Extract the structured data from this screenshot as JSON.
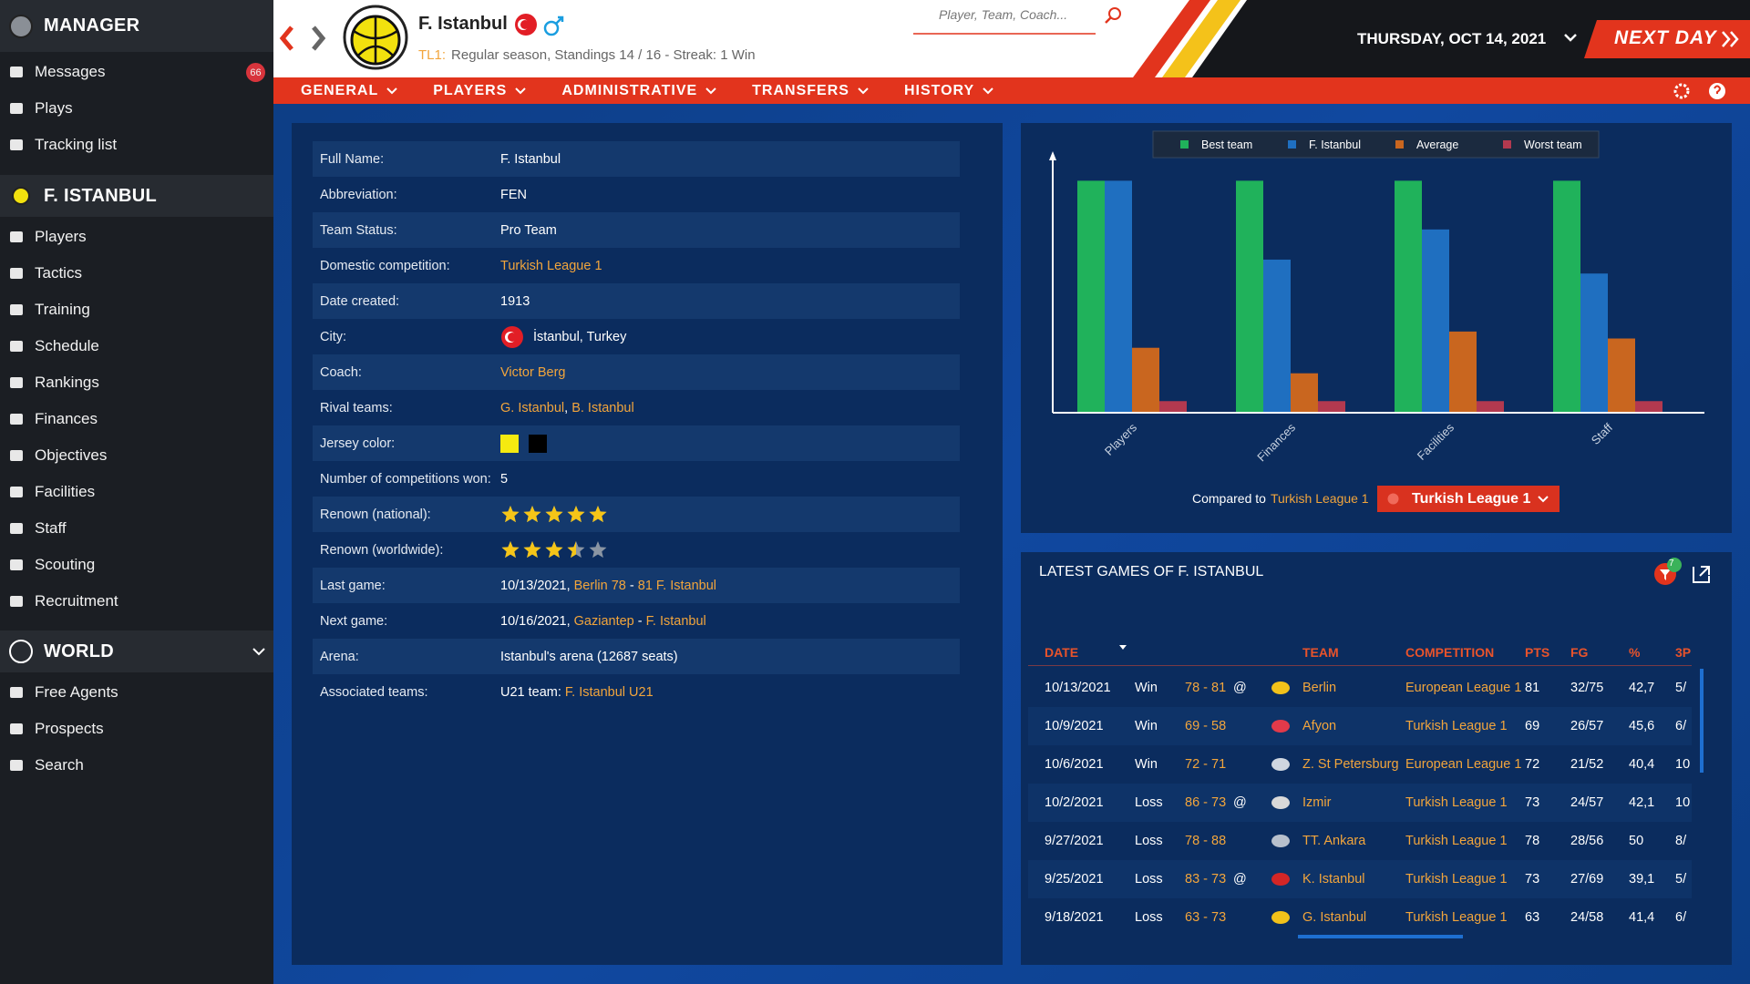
{
  "sidebar": {
    "sections": [
      {
        "title": "MANAGER",
        "items": [
          {
            "label": "Messages",
            "badge": 66
          },
          {
            "label": "Plays"
          },
          {
            "label": "Tracking list"
          }
        ]
      },
      {
        "title": "F. ISTANBUL",
        "items": [
          {
            "label": "Players"
          },
          {
            "label": "Tactics"
          },
          {
            "label": "Training"
          },
          {
            "label": "Schedule"
          },
          {
            "label": "Rankings"
          },
          {
            "label": "Finances"
          },
          {
            "label": "Objectives"
          },
          {
            "label": "Facilities"
          },
          {
            "label": "Staff"
          },
          {
            "label": "Scouting"
          },
          {
            "label": "Recruitment"
          }
        ]
      },
      {
        "title": "WORLD",
        "items": [
          {
            "label": "Free Agents"
          },
          {
            "label": "Prospects"
          },
          {
            "label": "Search"
          }
        ]
      }
    ]
  },
  "header": {
    "team_name": "F. Istanbul",
    "league": "TL1:",
    "status": "Regular season, Standings 14 / 16 - Streak: 1 Win",
    "search_placeholder": "Player, Team, Coach...",
    "date": "THURSDAY, OCT 14, 2021",
    "next_day": "NEXT DAY"
  },
  "nav": {
    "tabs": [
      "GENERAL",
      "PLAYERS",
      "ADMINISTRATIVE",
      "TRANSFERS",
      "HISTORY"
    ]
  },
  "team_info": {
    "rows": [
      {
        "label": "Full Name:",
        "value": [
          {
            "text": "F. Istanbul",
            "link": false
          }
        ]
      },
      {
        "label": "Abbreviation:",
        "value": [
          {
            "text": "FEN",
            "link": false
          }
        ]
      },
      {
        "label": "Team Status:",
        "value": [
          {
            "text": "Pro Team",
            "link": false
          }
        ]
      },
      {
        "label": "Domestic competition:",
        "value": [
          {
            "text": "Turkish League 1",
            "link": true
          }
        ]
      },
      {
        "label": "Date created:",
        "value": [
          {
            "text": "1913",
            "link": false
          }
        ]
      },
      {
        "label": "City:",
        "value": [
          {
            "text": "İstanbul, Turkey",
            "link": false
          }
        ]
      },
      {
        "label": "Coach:",
        "value": [
          {
            "text": "Victor Berg",
            "link": true
          }
        ]
      },
      {
        "label": "Rival teams:",
        "value": [
          {
            "text": "G. Istanbul",
            "link": true
          },
          {
            "text": ", ",
            "link": false
          },
          {
            "text": "B. Istanbul",
            "link": true
          }
        ]
      },
      {
        "label": "Jersey color:",
        "colors": [
          "#f5ea10",
          "#000000"
        ]
      },
      {
        "label": "Number of competitions won:",
        "value": [
          {
            "text": "5",
            "link": false
          }
        ]
      },
      {
        "label": "Renown (national):",
        "stars": 5,
        "max_stars": 5
      },
      {
        "label": "Renown (worldwide):",
        "stars": 3.5,
        "max_stars": 5
      },
      {
        "label": "Last game:",
        "value": [
          {
            "text": "10/13/2021, ",
            "link": false
          },
          {
            "text": "Berlin 78",
            "link": true
          },
          {
            "text": " - ",
            "link": false
          },
          {
            "text": "81 F. Istanbul",
            "link": true
          }
        ]
      },
      {
        "label": "Next game:",
        "value": [
          {
            "text": "10/16/2021, ",
            "link": false
          },
          {
            "text": "Gaziantep",
            "link": true
          },
          {
            "text": " - ",
            "link": false
          },
          {
            "text": "F. Istanbul",
            "link": true
          }
        ]
      },
      {
        "label": "Arena:",
        "value": [
          {
            "text": "Istanbul's arena (12687 seats)",
            "link": false
          }
        ]
      },
      {
        "label": "Associated teams:",
        "value": [
          {
            "text": "U21 team: ",
            "link": false
          },
          {
            "text": "F. Istanbul U21",
            "link": true
          }
        ]
      }
    ]
  },
  "chart_data": {
    "type": "bar",
    "categories": [
      "Players",
      "Finances",
      "Facilities",
      "Staff"
    ],
    "ylim": [
      0,
      108
    ],
    "legend": "top",
    "series": [
      {
        "name": "Best team",
        "color": "#20b25b",
        "values": [
          100,
          100,
          100,
          100
        ]
      },
      {
        "name": "F. Istanbul",
        "color": "#1f6fc0",
        "values": [
          100,
          66,
          79,
          60
        ]
      },
      {
        "name": "Average",
        "color": "#c9661f",
        "values": [
          28,
          17,
          35,
          32
        ]
      },
      {
        "name": "Worst team",
        "color": "#b3394f",
        "values": [
          5,
          5,
          5,
          5
        ]
      }
    ]
  },
  "comparison": {
    "label": "Compared to",
    "league": "Turkish League 1",
    "selected": "Turkish League 1"
  },
  "latest_games": {
    "title": "LATEST GAMES OF F. ISTANBUL",
    "filter_count": 7,
    "columns": [
      "DATE",
      "TEAM",
      "COMPETITION",
      "PTS",
      "FG",
      "%",
      "3P"
    ],
    "rows": [
      {
        "date": "10/13/2021",
        "result": "Win",
        "score": "78 - 81",
        "away": "@",
        "team": "Berlin",
        "competition": "European League 1",
        "pts": 81,
        "fg": "32/75",
        "pct": "42,7",
        "three": "5/"
      },
      {
        "date": "10/9/2021",
        "result": "Win",
        "score": "69 - 58",
        "away": null,
        "team": "Afyon",
        "competition": "Turkish League 1",
        "pts": 69,
        "fg": "26/57",
        "pct": "45,6",
        "three": "6/"
      },
      {
        "date": "10/6/2021",
        "result": "Win",
        "score": "72 - 71",
        "away": null,
        "team": "Z. St Petersburg",
        "competition": "European League 1",
        "pts": 72,
        "fg": "21/52",
        "pct": "40,4",
        "three": "10"
      },
      {
        "date": "10/2/2021",
        "result": "Loss",
        "score": "86 - 73",
        "away": "@",
        "team": "Izmir",
        "competition": "Turkish League 1",
        "pts": 73,
        "fg": "24/57",
        "pct": "42,1",
        "three": "10"
      },
      {
        "date": "9/27/2021",
        "result": "Loss",
        "score": "78 - 88",
        "away": null,
        "team": "TT. Ankara",
        "competition": "Turkish League 1",
        "pts": 78,
        "fg": "28/56",
        "pct": "50",
        "three": "8/"
      },
      {
        "date": "9/25/2021",
        "result": "Loss",
        "score": "83 - 73",
        "away": "@",
        "team": "K. Istanbul",
        "competition": "Turkish League 1",
        "pts": 73,
        "fg": "27/69",
        "pct": "39,1",
        "three": "5/"
      },
      {
        "date": "9/18/2021",
        "result": "Loss",
        "score": "63 - 73",
        "away": null,
        "team": "G. Istanbul",
        "competition": "Turkish League 1",
        "pts": 63,
        "fg": "24/58",
        "pct": "41,4",
        "three": "6/"
      }
    ]
  }
}
